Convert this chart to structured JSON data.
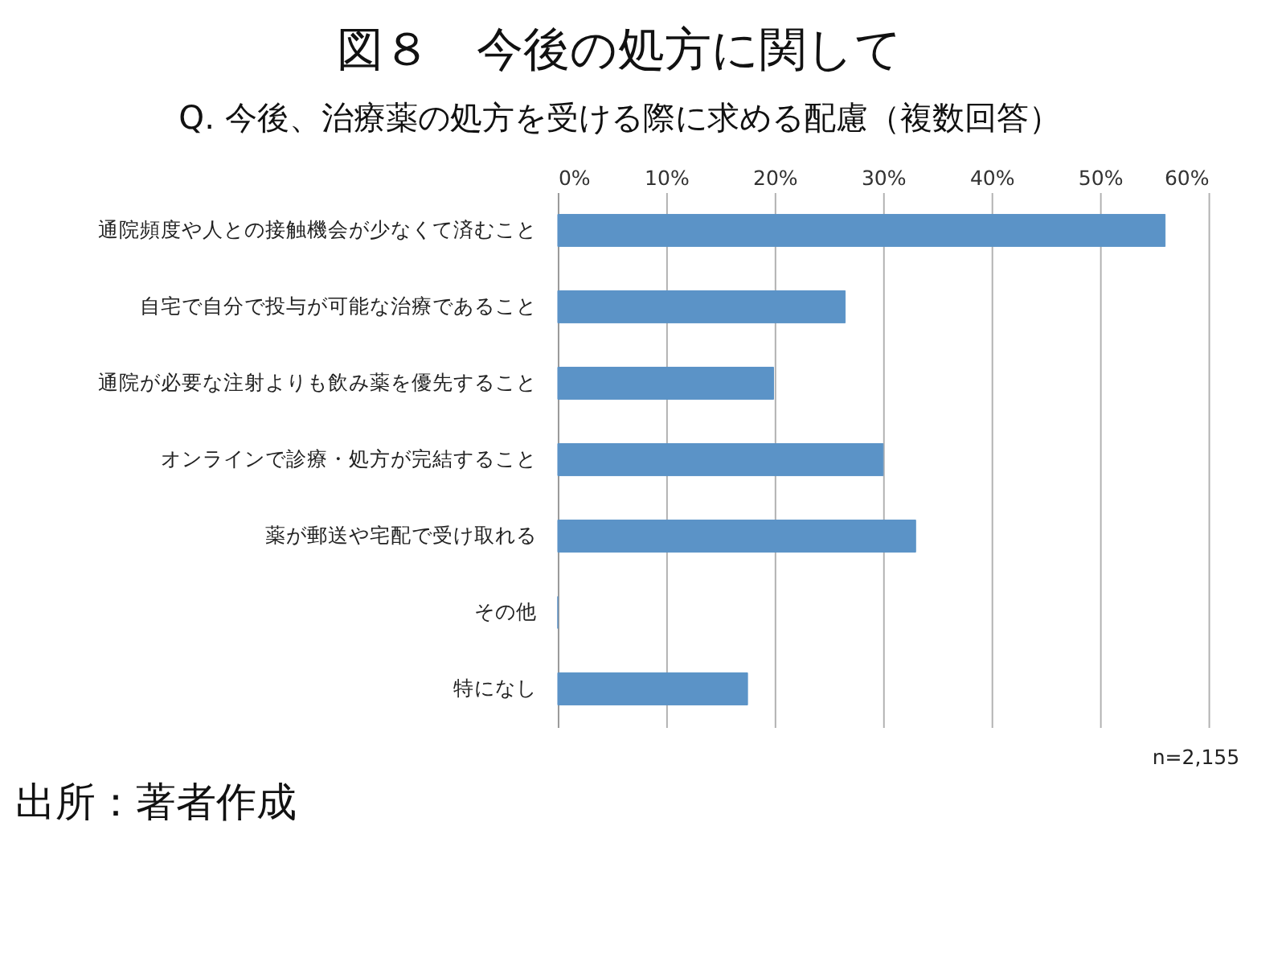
{
  "chart_data": {
    "type": "bar",
    "orientation": "horizontal",
    "title": "図８　今後の処方に関して",
    "subtitle": "Q.  今後、治療薬の処方を受ける際に求める配慮（複数回答）",
    "categories": [
      "通院頻度や人との接触機会が少なくて済むこと",
      "自宅で自分で投与が可能な治療であること",
      "通院が必要な注射よりも飲み薬を優先すること",
      "オンラインで診療・処方が完結すること",
      "薬が郵送や宅配で受け取れる",
      "その他",
      "特になし"
    ],
    "values": [
      56.0,
      26.5,
      19.9,
      30.0,
      33.0,
      0,
      17.5
    ],
    "color": "#5b93c7",
    "xlim": [
      0,
      60
    ],
    "xticks": [
      {
        "value": 0,
        "label": "0%"
      },
      {
        "value": 10,
        "label": "10%"
      },
      {
        "value": 20,
        "label": "20%"
      },
      {
        "value": 30,
        "label": "30%"
      },
      {
        "value": 40,
        "label": "40%"
      },
      {
        "value": 50,
        "label": "50%"
      },
      {
        "value": 60,
        "label": "60%"
      }
    ],
    "grid": "x",
    "annotations": [
      "n=2,155",
      "出所：著者作成"
    ]
  }
}
